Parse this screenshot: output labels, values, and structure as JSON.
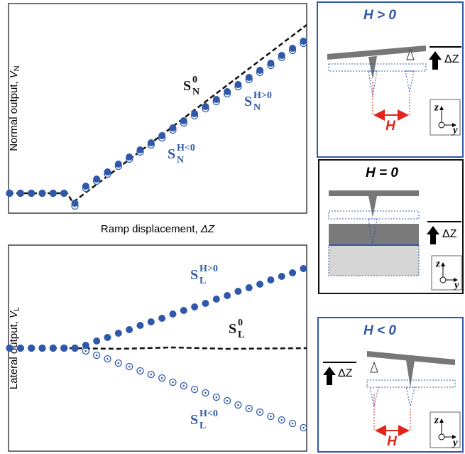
{
  "chart_data": [
    {
      "type": "line",
      "ylabel": "Normal output, ",
      "ylabel_var": "V",
      "ylabel_sub": "N",
      "xlabel": "Ramp displacement, ",
      "xlabel_var": "ΔZ",
      "xlim": [
        -0.1,
        27.3
      ],
      "ylim": [
        0,
        295
      ],
      "series": [
        {
          "name": "S",
          "sub": "N",
          "sup": "0",
          "style": "dashed",
          "color": "#111111",
          "x": [
            -0.1,
            5.3,
            5.8,
            27.3
          ],
          "values": [
            28,
            28,
            15,
            265
          ]
        },
        {
          "name": "S",
          "sub": "N",
          "sup": "H<0",
          "style": "open",
          "color": "#2f58a8",
          "x": [
            0,
            1,
            2,
            3,
            4,
            5,
            6,
            7,
            8,
            9,
            10,
            11,
            12,
            13,
            14,
            15,
            16,
            17,
            18,
            19,
            20,
            21,
            22,
            23,
            24,
            25,
            26,
            27
          ],
          "values": [
            28,
            28,
            28,
            28,
            28,
            28,
            10,
            35,
            45,
            55,
            66,
            76,
            86,
            96,
            106,
            117,
            127,
            137,
            147,
            157,
            168,
            178,
            188,
            198,
            208,
            219,
            229,
            239
          ]
        },
        {
          "name": "S",
          "sub": "N",
          "sup": "H>0",
          "style": "filled",
          "color": "#2f58a8",
          "x": [
            0,
            1,
            2,
            3,
            4,
            5,
            6,
            7,
            8,
            9,
            10,
            11,
            12,
            13,
            14,
            15,
            16,
            17,
            18,
            19,
            20,
            21,
            22,
            23,
            24,
            25,
            26,
            27
          ],
          "values": [
            28,
            28,
            28,
            28,
            28,
            28,
            14,
            38,
            48,
            58,
            69,
            79,
            89,
            99,
            109,
            120,
            130,
            140,
            150,
            160,
            171,
            181,
            191,
            201,
            211,
            222,
            232,
            242
          ]
        }
      ]
    },
    {
      "type": "line",
      "ylabel": "Lateral output, ",
      "ylabel_var": "V",
      "ylabel_sub": "L",
      "xlim": [
        -0.1,
        27.3
      ],
      "ylim": [
        0,
        290
      ],
      "series": [
        {
          "name": "S",
          "sub": "L",
          "sup": "0",
          "style": "dashed",
          "color": "#111111",
          "x": [
            5.5,
            10,
            15,
            20,
            27.3
          ],
          "values": [
            145,
            144,
            146,
            144,
            145
          ]
        },
        {
          "name": "S",
          "sub": "L",
          "sup": "H<0",
          "style": "open",
          "color": "#2f58a8",
          "x": [
            0,
            1,
            2,
            3,
            4,
            5,
            6,
            7,
            8,
            9,
            10,
            11,
            12,
            13,
            14,
            15,
            16,
            17,
            18,
            19,
            20,
            21,
            22,
            23,
            24,
            25,
            26,
            27
          ],
          "values": [
            145,
            145,
            145,
            145,
            145,
            145,
            145,
            141,
            135,
            130,
            124,
            119,
            113,
            108,
            103,
            97,
            92,
            87,
            82,
            76,
            71,
            65,
            60,
            55,
            49,
            44,
            39,
            33
          ]
        },
        {
          "name": "S",
          "sub": "L",
          "sup": "H>0",
          "style": "filled",
          "color": "#2f58a8",
          "x": [
            0,
            1,
            2,
            3,
            4,
            5,
            6,
            7,
            8,
            9,
            10,
            11,
            12,
            13,
            14,
            15,
            16,
            17,
            18,
            19,
            20,
            21,
            22,
            23,
            24,
            25,
            26,
            27
          ],
          "values": [
            145,
            145,
            145,
            145,
            145,
            145,
            145,
            149,
            155,
            160,
            166,
            171,
            177,
            182,
            187,
            193,
            198,
            203,
            208,
            214,
            219,
            225,
            230,
            235,
            241,
            246,
            251,
            257
          ]
        }
      ]
    }
  ],
  "panels": [
    {
      "title": "H > 0",
      "dz": "ΔZ",
      "h": "H",
      "z": "z",
      "y": "y"
    },
    {
      "title": "H = 0",
      "dz": "ΔZ",
      "z": "z",
      "y": "y"
    },
    {
      "title": "H < 0",
      "dz": "ΔZ",
      "h": "H",
      "z": "z",
      "y": "y"
    }
  ]
}
